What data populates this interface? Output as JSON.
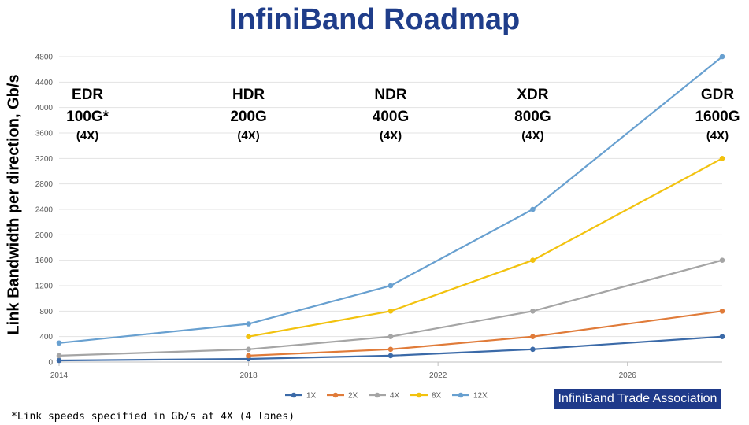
{
  "chart_data": {
    "type": "line",
    "title": "InfiniBand Roadmap",
    "ylabel": "Link Bandwidth per direction, Gb/s",
    "xlabel": "",
    "xlim": [
      2014,
      2028
    ],
    "ylim": [
      0,
      4800
    ],
    "x_ticks": [
      "2014",
      "2018",
      "2022",
      "2026"
    ],
    "y_ticks": [
      "0",
      "400",
      "800",
      "1200",
      "1600",
      "2000",
      "2400",
      "2800",
      "3200",
      "3600",
      "4000",
      "4400",
      "4800"
    ],
    "grid": true,
    "legend_position": "bottom",
    "series": [
      {
        "name": "1X",
        "color": "#3b6aa8",
        "points": [
          [
            2014,
            25
          ],
          [
            2018,
            50
          ],
          [
            2021,
            100
          ],
          [
            2024,
            200
          ],
          [
            2028,
            400
          ]
        ]
      },
      {
        "name": "2X",
        "color": "#e07b39",
        "points": [
          [
            2018,
            100
          ],
          [
            2021,
            200
          ],
          [
            2024,
            400
          ],
          [
            2028,
            800
          ]
        ]
      },
      {
        "name": "4X",
        "color": "#a5a5a5",
        "points": [
          [
            2014,
            100
          ],
          [
            2018,
            200
          ],
          [
            2021,
            400
          ],
          [
            2024,
            800
          ],
          [
            2028,
            1600
          ]
        ]
      },
      {
        "name": "8X",
        "color": "#f2c20e",
        "points": [
          [
            2018,
            400
          ],
          [
            2021,
            800
          ],
          [
            2024,
            1600
          ],
          [
            2028,
            3200
          ]
        ]
      },
      {
        "name": "12X",
        "color": "#68a0d0",
        "points": [
          [
            2014,
            300
          ],
          [
            2018,
            600
          ],
          [
            2021,
            1200
          ],
          [
            2024,
            2400
          ],
          [
            2028,
            4800
          ]
        ]
      }
    ],
    "annotations": [
      {
        "x": 2014.6,
        "name": "EDR",
        "speed": "100G*",
        "lanes": "(4X)"
      },
      {
        "x": 2018,
        "name": "HDR",
        "speed": "200G",
        "lanes": "(4X)"
      },
      {
        "x": 2021,
        "name": "NDR",
        "speed": "400G",
        "lanes": "(4X)"
      },
      {
        "x": 2024,
        "name": "XDR",
        "speed": "800G",
        "lanes": "(4X)"
      },
      {
        "x": 2027.9,
        "name": "GDR",
        "speed": "1600G",
        "lanes": "(4X)"
      }
    ]
  },
  "badge": "InfiniBand Trade Association",
  "footnote": "*Link speeds specified in Gb/s at 4X (4 lanes)"
}
